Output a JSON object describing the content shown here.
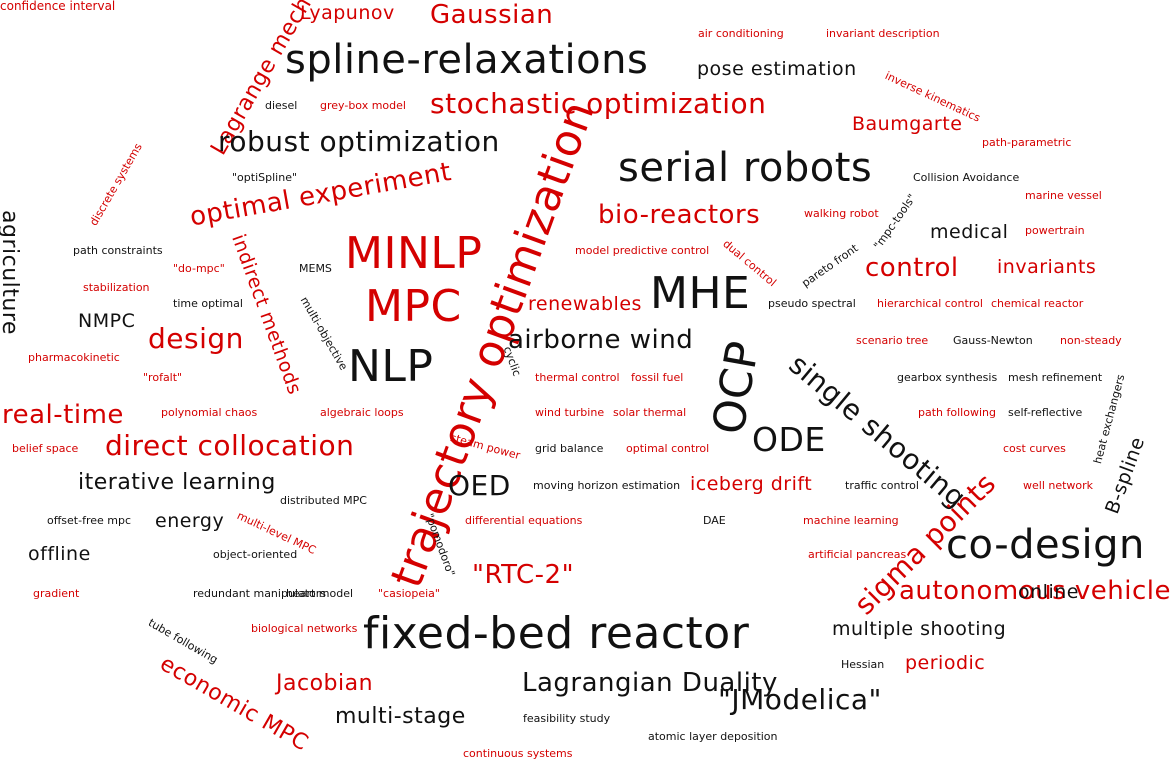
{
  "colors": {
    "black": "#111111",
    "red": "#d40000"
  },
  "words": [
    {
      "text": "Lyapunov",
      "color": "red"
    },
    {
      "text": "Gaussian",
      "color": "red"
    },
    {
      "text": "air conditioning",
      "color": "red"
    },
    {
      "text": "invariant description",
      "color": "red"
    },
    {
      "text": "spline-relaxations",
      "color": "black"
    },
    {
      "text": "pose estimation",
      "color": "black"
    },
    {
      "text": "inverse kinematics",
      "color": "red"
    },
    {
      "text": "Lagrange mechanics",
      "color": "red"
    },
    {
      "text": "diesel",
      "color": "black"
    },
    {
      "text": "grey-box model",
      "color": "red"
    },
    {
      "text": "stochastic optimization",
      "color": "red"
    },
    {
      "text": "Baumgarte",
      "color": "red"
    },
    {
      "text": "robust optimization",
      "color": "black"
    },
    {
      "text": "path-parametric",
      "color": "red"
    },
    {
      "text": "discrete systems",
      "color": "red"
    },
    {
      "text": "serial robots",
      "color": "black"
    },
    {
      "text": "\"optiSpline\"",
      "color": "black"
    },
    {
      "text": "Collision Avoidance",
      "color": "black"
    },
    {
      "text": "optimal experiment",
      "color": "red"
    },
    {
      "text": "bio-reactors",
      "color": "red"
    },
    {
      "text": "walking robot",
      "color": "red"
    },
    {
      "text": "marine vessel",
      "color": "red"
    },
    {
      "text": "agriculture",
      "color": "black"
    },
    {
      "text": "indirect methods",
      "color": "red"
    },
    {
      "text": "\"mpc-tools\"",
      "color": "black"
    },
    {
      "text": "medical",
      "color": "black"
    },
    {
      "text": "powertrain",
      "color": "red"
    },
    {
      "text": "path constraints",
      "color": "black"
    },
    {
      "text": "MINLP",
      "color": "red"
    },
    {
      "text": "model predictive control",
      "color": "red"
    },
    {
      "text": "dual control",
      "color": "red"
    },
    {
      "text": "pareto front",
      "color": "black"
    },
    {
      "text": "\"do-mpc\"",
      "color": "red"
    },
    {
      "text": "MEMS",
      "color": "black"
    },
    {
      "text": "control",
      "color": "red"
    },
    {
      "text": "invariants",
      "color": "red"
    },
    {
      "text": "stabilization",
      "color": "red"
    },
    {
      "text": "trajectory optimization",
      "color": "red"
    },
    {
      "text": "MHE",
      "color": "black"
    },
    {
      "text": "time optimal",
      "color": "black"
    },
    {
      "text": "MPC",
      "color": "red"
    },
    {
      "text": "renewables",
      "color": "red"
    },
    {
      "text": "pseudo spectral",
      "color": "black"
    },
    {
      "text": "hierarchical control",
      "color": "red"
    },
    {
      "text": "chemical reactor",
      "color": "red"
    },
    {
      "text": "NMPC",
      "color": "black"
    },
    {
      "text": "multi-objective",
      "color": "black"
    },
    {
      "text": "design",
      "color": "red"
    },
    {
      "text": "airborne wind",
      "color": "black"
    },
    {
      "text": "scenario tree",
      "color": "red"
    },
    {
      "text": "Gauss-Newton",
      "color": "black"
    },
    {
      "text": "non-steady",
      "color": "red"
    },
    {
      "text": "pharmacokinetic",
      "color": "red"
    },
    {
      "text": "NLP",
      "color": "black"
    },
    {
      "text": "single shooting",
      "color": "black"
    },
    {
      "text": "\"rofalt\"",
      "color": "red"
    },
    {
      "text": "cyclic",
      "color": "black"
    },
    {
      "text": "thermal control",
      "color": "red"
    },
    {
      "text": "fossil fuel",
      "color": "red"
    },
    {
      "text": "OCP",
      "color": "black"
    },
    {
      "text": "gearbox synthesis",
      "color": "black"
    },
    {
      "text": "mesh refinement",
      "color": "black"
    },
    {
      "text": "heat exchangers",
      "color": "black"
    },
    {
      "text": "real-time",
      "color": "red"
    },
    {
      "text": "polynomial chaos",
      "color": "red"
    },
    {
      "text": "algebraic loops",
      "color": "red"
    },
    {
      "text": "wind turbine",
      "color": "red"
    },
    {
      "text": "solar thermal",
      "color": "red"
    },
    {
      "text": "path following",
      "color": "red"
    },
    {
      "text": "self-reflective",
      "color": "black"
    },
    {
      "text": "steam power",
      "color": "red"
    },
    {
      "text": "belief space",
      "color": "red"
    },
    {
      "text": "direct collocation",
      "color": "red"
    },
    {
      "text": "grid balance",
      "color": "black"
    },
    {
      "text": "optimal control",
      "color": "red"
    },
    {
      "text": "ODE",
      "color": "black"
    },
    {
      "text": "cost curves",
      "color": "red"
    },
    {
      "text": "B-spline",
      "color": "black"
    },
    {
      "text": "iterative learning",
      "color": "black"
    },
    {
      "text": "OED",
      "color": "black"
    },
    {
      "text": "moving horizon estimation",
      "color": "black"
    },
    {
      "text": "iceberg drift",
      "color": "red"
    },
    {
      "text": "traffic control",
      "color": "black"
    },
    {
      "text": "well network",
      "color": "red"
    },
    {
      "text": "distributed MPC",
      "color": "black"
    },
    {
      "text": "offset-free mpc",
      "color": "black"
    },
    {
      "text": "energy",
      "color": "black"
    },
    {
      "text": "multi-level MPC",
      "color": "red"
    },
    {
      "text": "differential equations",
      "color": "red"
    },
    {
      "text": "DAE",
      "color": "black"
    },
    {
      "text": "machine learning",
      "color": "red"
    },
    {
      "text": "sigma points",
      "color": "red"
    },
    {
      "text": "co-design",
      "color": "black"
    },
    {
      "text": "offline",
      "color": "black"
    },
    {
      "text": "object-oriented",
      "color": "black"
    },
    {
      "text": "\"pomodoro\"",
      "color": "black"
    },
    {
      "text": "artificial pancreas",
      "color": "red"
    },
    {
      "text": "\"RTC-2\"",
      "color": "red"
    },
    {
      "text": "autonomous vehicles",
      "color": "red"
    },
    {
      "text": "online",
      "color": "black"
    },
    {
      "text": "gradient",
      "color": "red"
    },
    {
      "text": "redundant manipulators",
      "color": "black"
    },
    {
      "text": "heart model",
      "color": "black"
    },
    {
      "text": "\"casiopeia\"",
      "color": "red"
    },
    {
      "text": "tube following",
      "color": "black"
    },
    {
      "text": "biological networks",
      "color": "red"
    },
    {
      "text": "fixed-bed reactor",
      "color": "black"
    },
    {
      "text": "multiple shooting",
      "color": "black"
    },
    {
      "text": "economic MPC",
      "color": "red"
    },
    {
      "text": "Hessian",
      "color": "black"
    },
    {
      "text": "periodic",
      "color": "red"
    },
    {
      "text": "Jacobian",
      "color": "red"
    },
    {
      "text": "Lagrangian Duality",
      "color": "black"
    },
    {
      "text": "\"JModelica\"",
      "color": "black"
    },
    {
      "text": "multi-stage",
      "color": "black"
    },
    {
      "text": "feasibility study",
      "color": "black"
    },
    {
      "text": "atomic layer deposition",
      "color": "black"
    },
    {
      "text": "continuous systems",
      "color": "red"
    },
    {
      "text": "confidence interval",
      "color": "red"
    }
  ]
}
